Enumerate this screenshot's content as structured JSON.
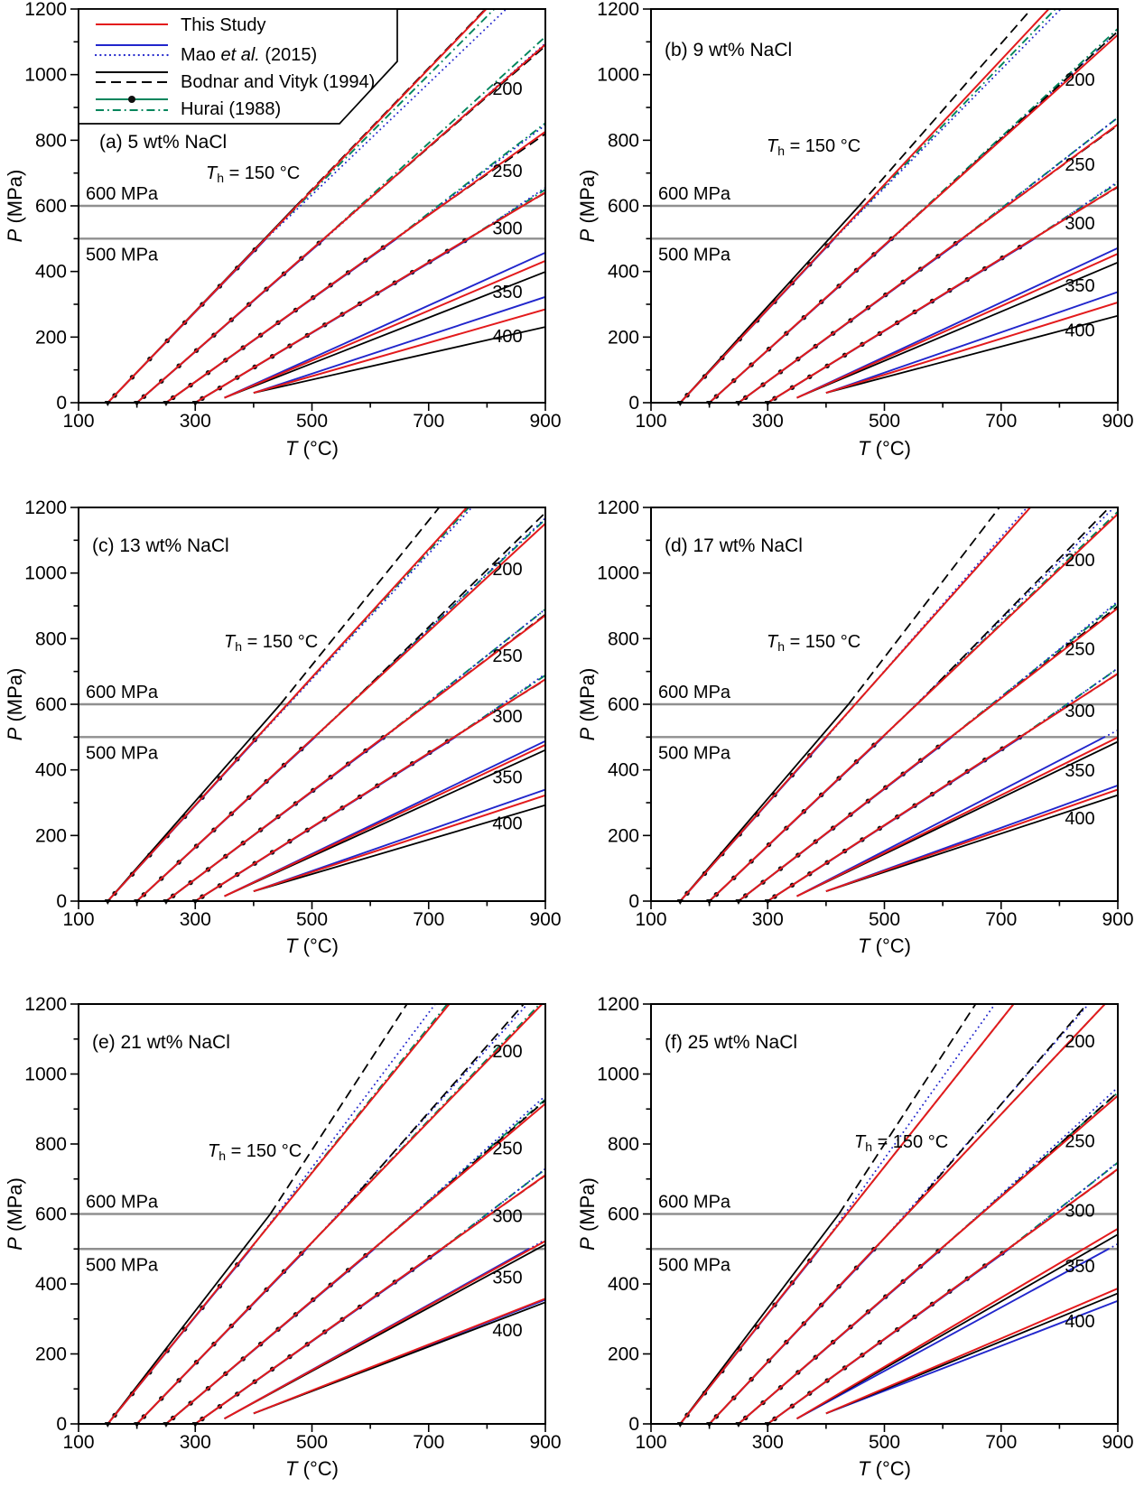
{
  "figure": {
    "description": "Isochores of NaCl-H2O fluid inclusions for six salinities comparing four studies",
    "pressure_limit_labels": [
      "600 MPa",
      "500 MPa"
    ]
  },
  "colors": {
    "red": "#e31a1c",
    "blue": "#2126cc",
    "black": "#000000",
    "green": "#00855c",
    "marker": "#101010",
    "ref_line": "#8f8f8f",
    "label_gray": "#3f3f3f"
  },
  "legend": {
    "entries": [
      {
        "color_key": "red",
        "samples": [
          "solid"
        ],
        "label_parts": [
          {
            "t": "This Study",
            "i": false
          }
        ]
      },
      {
        "color_key": "blue",
        "samples": [
          "solid",
          "dotted"
        ],
        "label_parts": [
          {
            "t": "Mao ",
            "i": false
          },
          {
            "t": "et al.",
            "i": true
          },
          {
            "t": " (2015)",
            "i": false
          }
        ]
      },
      {
        "color_key": "black",
        "samples": [
          "solid",
          "dashed"
        ],
        "label_parts": [
          {
            "t": "Bodnar and Vityk (1994)",
            "i": false
          }
        ]
      },
      {
        "color_key": "green",
        "samples": [
          "solid_marker",
          "dashdot"
        ],
        "label_parts": [
          {
            "t": "Hurai (1988)",
            "i": false
          }
        ]
      }
    ]
  },
  "chart_data": {
    "type": "line",
    "x_axis": {
      "label_italic": "T",
      "label_rest": " (°C)",
      "min": 100,
      "max": 900,
      "major_ticks": [
        100,
        300,
        500,
        700,
        900
      ],
      "minor_step": 100
    },
    "y_axis": {
      "label_italic": "P",
      "label_rest": " (MPa)",
      "min": 0,
      "max": 1200,
      "major_ticks": [
        0,
        200,
        400,
        600,
        800,
        1000,
        1200
      ],
      "minor_step": 100
    },
    "x_tick_labels": [
      "100",
      "300",
      "500",
      "700",
      "900"
    ],
    "y_tick_labels": [
      "0",
      "200",
      "400",
      "600",
      "800",
      "1000",
      "1200"
    ],
    "reference_lines": [
      {
        "p": 600,
        "label": "600 MPa"
      },
      {
        "p": 500,
        "label": "500 MPa"
      }
    ],
    "validity_limits_MPa": {
      "mao_solid_max": 500,
      "hurai_solid_max": 500,
      "bodnar_solid_max": 600
    },
    "group_labels": [
      "200",
      "250",
      "300",
      "350",
      "400"
    ],
    "th_annotation": {
      "pre": "T",
      "sub": "h",
      "post": " = 150 °C"
    },
    "homogenization_temperatures_C": [
      150,
      200,
      250,
      300,
      350,
      400
    ],
    "slope_units": "MPa per degree C (straight-line approximation of each isochore from its start point)",
    "panels": [
      {
        "id": "a",
        "tag": "(a)",
        "salinity": "5 wt% NaCl",
        "tag_pos": [
          110,
          164
        ],
        "th_pos": [
          228,
          198
        ],
        "has_legend": true,
        "isochores": [
          {
            "th": 150,
            "start": [
              150,
              0
            ],
            "slopes": {
              "this_study": 1.85,
              "bodnar_solid": 1.859,
              "bodnar_dashed": 1.85,
              "mao_solid": 1.841,
              "mao_dotted": 1.702,
              "hurai_solid": 1.85,
              "hurai_dashdot": 1.785
            }
          },
          {
            "th": 200,
            "start": [
              200,
              0
            ],
            "slopes": {
              "this_study": 1.56,
              "bodnar_solid": 1.56,
              "bodnar_dashed": 1.544,
              "mao_solid": 1.552,
              "mao_dotted": 1.576,
              "hurai_solid": 1.56,
              "hurai_dashdot": 1.622
            }
          },
          {
            "th": 250,
            "start": [
              250,
              0
            ],
            "slopes": {
              "this_study": 1.271,
              "bodnar_solid": 1.271,
              "bodnar_dashed": 1.233,
              "mao_solid": 1.265,
              "mao_dotted": 1.36,
              "hurai_solid": 1.271,
              "hurai_dashdot": 1.373
            }
          },
          {
            "th": 300,
            "start": [
              300,
              0
            ],
            "slopes": {
              "this_study": 1.069,
              "bodnar_solid": 1.069,
              "bodnar_dashed": 1.026,
              "mao_solid": 1.064,
              "mao_dotted": 1.197,
              "hurai_solid": 1.069,
              "hurai_dashdot": 1.133
            }
          },
          {
            "th": 350,
            "start": [
              350,
              15
            ],
            "slopes": {
              "this_study": 0.759,
              "mao_solid": 0.804,
              "bodnar_solid": 0.698
            }
          },
          {
            "th": 400,
            "start": [
              400,
              30
            ],
            "slopes": {
              "this_study": 0.509,
              "mao_solid": 0.585,
              "bodnar_solid": 0.402
            }
          }
        ]
      },
      {
        "id": "b",
        "tag": "(b)",
        "salinity": "9 wt% NaCl",
        "tag_pos": [
          102,
          62
        ],
        "th_pos": [
          215,
          168
        ],
        "has_legend": false,
        "isochores": [
          {
            "th": 150,
            "start": [
              150,
              0
            ],
            "slopes": {
              "this_study": 1.9,
              "bodnar_solid": 1.957,
              "bodnar_dashed": 2.033,
              "mao_solid": 1.891,
              "mao_dotted": 1.805,
              "hurai_solid": 1.9,
              "hurai_dashdot": 1.843
            }
          },
          {
            "th": 200,
            "start": [
              200,
              0
            ],
            "slopes": {
              "this_study": 1.602,
              "bodnar_solid": 1.602,
              "bodnar_dashed": 1.634,
              "mao_solid": 1.594,
              "mao_dotted": 1.634,
              "hurai_solid": 1.602,
              "hurai_dashdot": 1.65
            }
          },
          {
            "th": 250,
            "start": [
              250,
              0
            ],
            "slopes": {
              "this_study": 1.305,
              "bodnar_solid": 1.305,
              "bodnar_dashed": 1.292,
              "mao_solid": 1.298,
              "mao_dotted": 1.396,
              "hurai_solid": 1.305,
              "hurai_dashdot": 1.383
            }
          },
          {
            "th": 300,
            "start": [
              300,
              0
            ],
            "slopes": {
              "this_study": 1.098,
              "bodnar_solid": 1.098,
              "bodnar_dashed": 1.065,
              "mao_solid": 1.093,
              "mao_dotted": 1.219,
              "hurai_solid": 1.098,
              "hurai_dashdot": 1.175
            }
          },
          {
            "th": 350,
            "start": [
              350,
              15
            ],
            "slopes": {
              "this_study": 0.798,
              "mao_solid": 0.83,
              "bodnar_solid": 0.75
            }
          },
          {
            "th": 400,
            "start": [
              400,
              30
            ],
            "slopes": {
              "this_study": 0.551,
              "mao_solid": 0.615,
              "bodnar_solid": 0.47
            }
          }
        ]
      },
      {
        "id": "c",
        "tag": "(c)",
        "salinity": "13 wt% NaCl",
        "tag_pos": [
          102,
          62
        ],
        "th_pos": [
          248,
          168
        ],
        "has_legend": false,
        "isochores": [
          {
            "th": 150,
            "start": [
              150,
              0
            ],
            "slopes": {
              "this_study": 1.95,
              "bodnar_solid": 2.028,
              "bodnar_dashed": 2.204,
              "mao_solid": 1.94,
              "mao_dotted": 1.911,
              "hurai_solid": 1.95,
              "hurai_dashdot": 1.931
            }
          },
          {
            "th": 200,
            "start": [
              200,
              0
            ],
            "slopes": {
              "this_study": 1.644,
              "bodnar_solid": 1.644,
              "bodnar_dashed": 1.743,
              "mao_solid": 1.636,
              "mao_dotted": 1.693,
              "hurai_solid": 1.644,
              "hurai_dashdot": 1.677
            }
          },
          {
            "th": 250,
            "start": [
              250,
              0
            ],
            "slopes": {
              "this_study": 1.34,
              "bodnar_solid": 1.34,
              "bodnar_dashed": 1.353,
              "mao_solid": 1.333,
              "mao_dotted": 1.42,
              "hurai_solid": 1.34,
              "hurai_dashdot": 1.407
            }
          },
          {
            "th": 300,
            "start": [
              300,
              0
            ],
            "slopes": {
              "this_study": 1.127,
              "bodnar_solid": 1.127,
              "bodnar_dashed": 1.105,
              "mao_solid": 1.121,
              "mao_dotted": 1.251,
              "hurai_solid": 1.127,
              "hurai_dashdot": 1.206
            }
          },
          {
            "th": 350,
            "start": [
              350,
              15
            ],
            "slopes": {
              "this_study": 0.839,
              "mao_solid": 0.86,
              "bodnar_solid": 0.81
            }
          },
          {
            "th": 400,
            "start": [
              400,
              30
            ],
            "slopes": {
              "this_study": 0.585,
              "mao_solid": 0.62,
              "bodnar_solid": 0.525
            }
          }
        ]
      },
      {
        "id": "d",
        "tag": "(d)",
        "salinity": "17 wt% NaCl",
        "tag_pos": [
          102,
          62
        ],
        "th_pos": [
          215,
          168
        ],
        "has_legend": false,
        "isochores": [
          {
            "th": 150,
            "start": [
              150,
              0
            ],
            "slopes": {
              "this_study": 2.0,
              "bodnar_solid": 2.08,
              "bodnar_dashed": 2.32,
              "mao_solid": 1.99,
              "mao_dotted": 2.04,
              "hurai_solid": 2.0,
              "hurai_dashdot": 2.0
            }
          },
          {
            "th": 200,
            "start": [
              200,
              0
            ],
            "slopes": {
              "this_study": 1.686,
              "bodnar_solid": 1.686,
              "bodnar_dashed": 1.821,
              "mao_solid": 1.678,
              "mao_dotted": 1.77,
              "hurai_solid": 1.686,
              "hurai_dashdot": 1.703
            }
          },
          {
            "th": 250,
            "start": [
              250,
              0
            ],
            "slopes": {
              "this_study": 1.374,
              "bodnar_solid": 1.374,
              "bodnar_dashed": 1.402,
              "mao_solid": 1.367,
              "mao_dotted": 1.456,
              "hurai_solid": 1.374,
              "hurai_dashdot": 1.429
            }
          },
          {
            "th": 300,
            "start": [
              300,
              0
            ],
            "slopes": {
              "this_study": 1.156,
              "bodnar_solid": 1.156,
              "bodnar_dashed": 1.144,
              "mao_solid": 1.15,
              "mao_dotted": 1.272,
              "hurai_solid": 1.156,
              "hurai_dashdot": 1.249
            }
          },
          {
            "th": 350,
            "start": [
              350,
              15
            ],
            "slopes": {
              "this_study": 0.88,
              "mao_solid": 0.92,
              "bodnar_solid": 0.856
            }
          },
          {
            "th": 400,
            "start": [
              400,
              30
            ],
            "slopes": {
              "this_study": 0.62,
              "mao_solid": 0.645,
              "bodnar_solid": 0.586
            }
          }
        ]
      },
      {
        "id": "e",
        "tag": "(e)",
        "salinity": "21 wt% NaCl",
        "tag_pos": [
          102,
          62
        ],
        "th_pos": [
          230,
          182
        ],
        "has_legend": false,
        "isochores": [
          {
            "th": 150,
            "start": [
              150,
              0
            ],
            "slopes": {
              "this_study": 2.05,
              "bodnar_solid": 2.153,
              "bodnar_dashed": 2.563,
              "mao_solid": 2.04,
              "mao_dotted": 2.214,
              "hurai_solid": 2.05,
              "hurai_dashdot": 2.071
            }
          },
          {
            "th": 200,
            "start": [
              200,
              0
            ],
            "slopes": {
              "this_study": 1.728,
              "bodnar_solid": 1.728,
              "bodnar_dashed": 1.901,
              "mao_solid": 1.719,
              "mao_dotted": 1.849,
              "hurai_solid": 1.728,
              "hurai_dashdot": 1.745
            }
          },
          {
            "th": 250,
            "start": [
              250,
              0
            ],
            "slopes": {
              "this_study": 1.408,
              "bodnar_solid": 1.408,
              "bodnar_dashed": 1.45,
              "mao_solid": 1.401,
              "mao_dotted": 1.493,
              "hurai_solid": 1.408,
              "hurai_dashdot": 1.45
            }
          },
          {
            "th": 300,
            "start": [
              300,
              0
            ],
            "slopes": {
              "this_study": 1.185,
              "bodnar_solid": 1.185,
              "bodnar_dashed": 1.173,
              "mao_solid": 1.179,
              "mao_dotted": 1.304,
              "hurai_solid": 1.185,
              "hurai_dashdot": 1.28
            }
          },
          {
            "th": 350,
            "start": [
              350,
              15
            ],
            "slopes": {
              "this_study": 0.923,
              "mao_solid": 0.93,
              "bodnar_solid": 0.905
            }
          },
          {
            "th": 400,
            "start": [
              400,
              30
            ],
            "slopes": {
              "this_study": 0.656,
              "mao_solid": 0.65,
              "bodnar_solid": 0.635
            }
          }
        ]
      },
      {
        "id": "f",
        "tag": "(f)",
        "salinity": "25 wt% NaCl",
        "tag_pos": [
          102,
          62
        ],
        "th_pos": [
          312,
          172
        ],
        "has_legend": false,
        "isochores": [
          {
            "th": 150,
            "start": [
              150,
              0
            ],
            "slopes": {
              "this_study": 2.1,
              "bodnar_solid": 2.205,
              "bodnar_dashed": 2.562,
              "mao_solid": 2.09,
              "mao_dotted": 2.331,
              "hurai_solid": 2.1,
              "hurai_dashdot": 2.1
            }
          },
          {
            "th": 200,
            "start": [
              200,
              0
            ],
            "slopes": {
              "this_study": 1.77,
              "bodnar_solid": 1.77,
              "bodnar_dashed": 1.947,
              "mao_solid": 1.761,
              "mao_dotted": 1.912,
              "hurai_solid": 1.77,
              "hurai_dashdot": 1.77
            }
          },
          {
            "th": 250,
            "start": [
              250,
              0
            ],
            "slopes": {
              "this_study": 1.443,
              "bodnar_solid": 1.443,
              "bodnar_dashed": 1.486,
              "mao_solid": 1.436,
              "mao_dotted": 1.53,
              "hurai_solid": 1.443,
              "hurai_dashdot": 1.472
            }
          },
          {
            "th": 300,
            "start": [
              300,
              0
            ],
            "slopes": {
              "this_study": 1.214,
              "bodnar_solid": 1.214,
              "bodnar_dashed": 1.202,
              "mao_solid": 1.208,
              "mao_dotted": 1.335,
              "hurai_solid": 1.214,
              "hurai_dashdot": 1.311
            }
          },
          {
            "th": 350,
            "start": [
              350,
              15
            ],
            "slopes": {
              "this_study": 0.987,
              "mao_solid": 0.908,
              "bodnar_solid": 0.957
            }
          },
          {
            "th": 400,
            "start": [
              400,
              30
            ],
            "slopes": {
              "this_study": 0.714,
              "mao_solid": 0.643,
              "bodnar_solid": 0.686
            }
          }
        ]
      }
    ]
  }
}
